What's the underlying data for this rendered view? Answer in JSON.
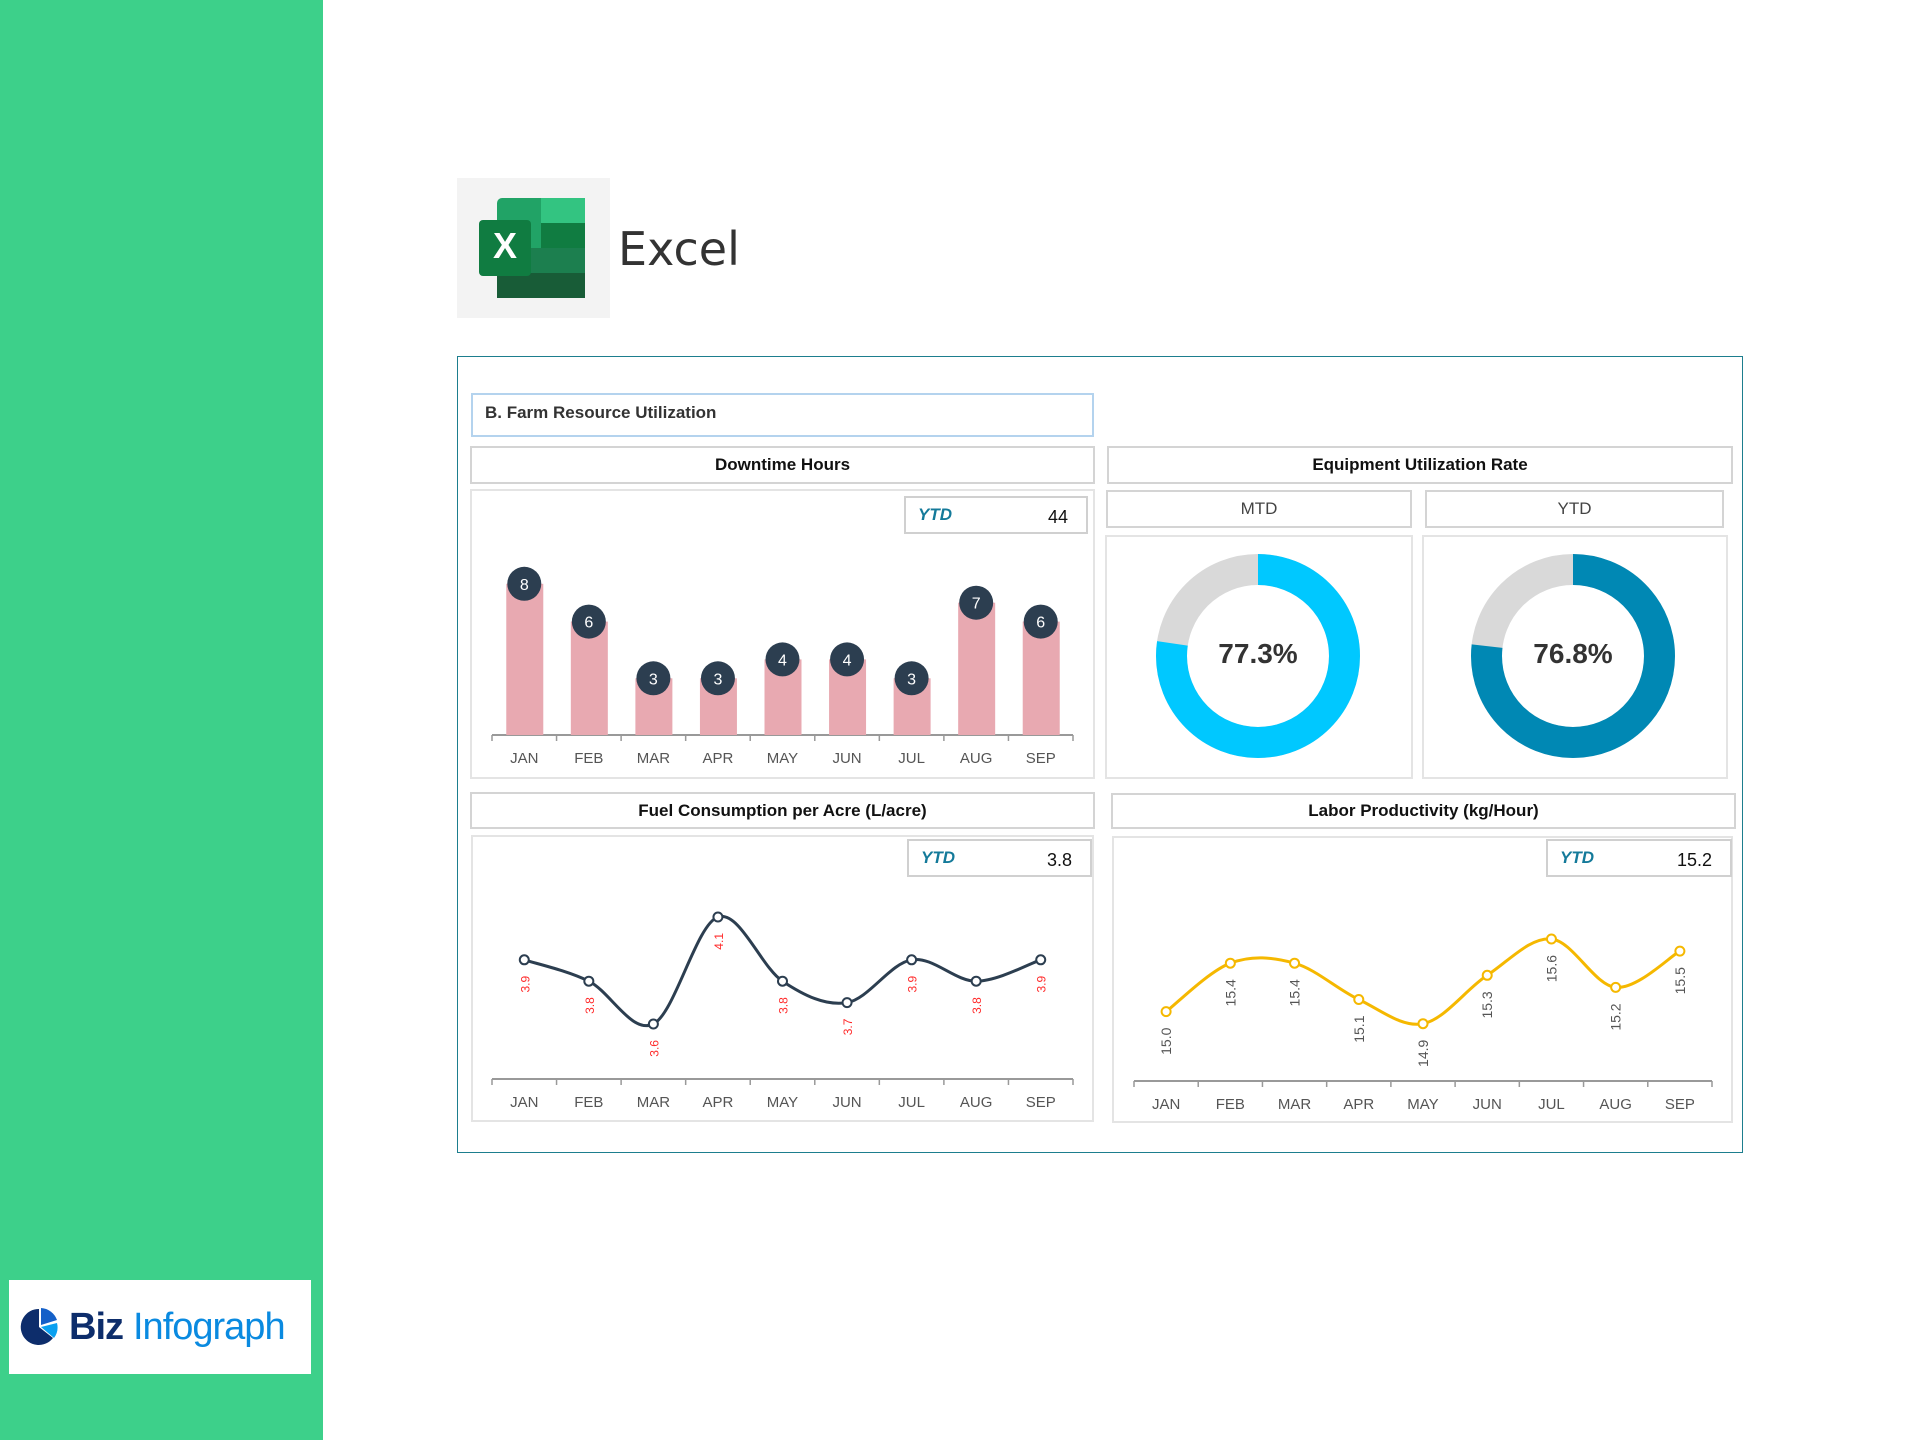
{
  "app": {
    "name": "Excel"
  },
  "brand": {
    "part1": "Biz",
    "part2": "Infograph"
  },
  "section_title": "B. Farm Resource Utilization",
  "colors": {
    "sidebar": "#3dd08a",
    "bar": "#e8a9b1",
    "bubble": "#2c3e50",
    "mtd": "#00c8ff",
    "ytd": "#0088b4",
    "remainder": "#d9d9d9",
    "fuel_line": "#2c3e50",
    "fuel_label": "#ff2a2a",
    "labor_line": "#f5b800"
  },
  "downtime": {
    "title": "Downtime Hours",
    "ytd_label": "YTD",
    "ytd_value": "44"
  },
  "equipment": {
    "title": "Equipment Utilization Rate",
    "mtd_label": "MTD",
    "ytd_label": "YTD",
    "mtd_value": "77.3%",
    "ytd_value": "76.8%",
    "mtd_pct": 77.3,
    "ytd_pct": 76.8
  },
  "fuel": {
    "title": "Fuel Consumption per Acre (L/acre)",
    "ytd_label": "YTD",
    "ytd_value": "3.8"
  },
  "labor": {
    "title": "Labor Productivity (kg/Hour)",
    "ytd_label": "YTD",
    "ytd_value": "15.2"
  },
  "chart_data": [
    {
      "type": "bar",
      "title": "Downtime Hours",
      "categories": [
        "JAN",
        "FEB",
        "MAR",
        "APR",
        "MAY",
        "JUN",
        "JUL",
        "AUG",
        "SEP"
      ],
      "values": [
        8,
        6,
        3,
        3,
        4,
        4,
        3,
        7,
        6
      ],
      "ylim": [
        0,
        8
      ]
    },
    {
      "type": "pie",
      "title": "Equipment Utilization Rate MTD",
      "values": [
        77.3,
        22.7
      ]
    },
    {
      "type": "pie",
      "title": "Equipment Utilization Rate YTD",
      "values": [
        76.8,
        23.2
      ]
    },
    {
      "type": "line",
      "title": "Fuel Consumption per Acre (L/acre)",
      "categories": [
        "JAN",
        "FEB",
        "MAR",
        "APR",
        "MAY",
        "JUN",
        "JUL",
        "AUG",
        "SEP"
      ],
      "values": [
        3.9,
        3.8,
        3.6,
        4.1,
        3.8,
        3.7,
        3.9,
        3.8,
        3.9
      ],
      "labels": [
        "3.9",
        "3.8",
        "3.6",
        "4.1",
        "3.8",
        "3.7",
        "3.9",
        "3.8",
        "3.9"
      ]
    },
    {
      "type": "line",
      "title": "Labor Productivity (kg/Hour)",
      "categories": [
        "JAN",
        "FEB",
        "MAR",
        "APR",
        "MAY",
        "JUN",
        "JUL",
        "AUG",
        "SEP"
      ],
      "values": [
        15.0,
        15.4,
        15.4,
        15.1,
        14.9,
        15.3,
        15.6,
        15.2,
        15.5
      ],
      "labels": [
        "15.0",
        "15.4",
        "15.4",
        "15.1",
        "14.9",
        "15.3",
        "15.6",
        "15.2",
        "15.5"
      ]
    }
  ]
}
